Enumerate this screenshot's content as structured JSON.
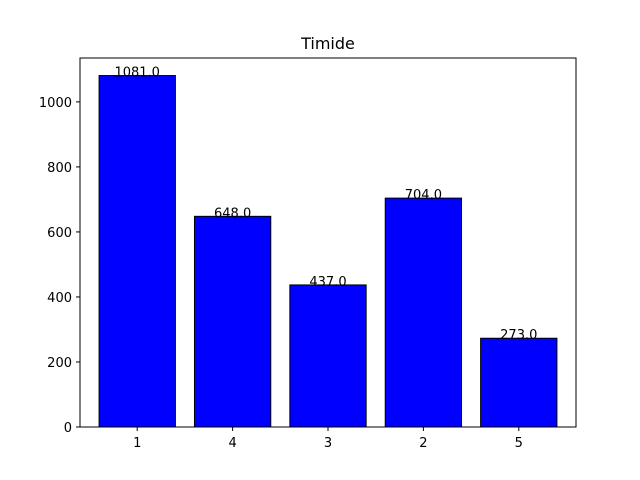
{
  "chart_data": {
    "type": "bar",
    "title": "Timide",
    "xlabel": "",
    "ylabel": "",
    "categories": [
      "1",
      "4",
      "3",
      "2",
      "5"
    ],
    "values": [
      1081.0,
      648.0,
      437.0,
      704.0,
      273.0
    ],
    "data_labels": [
      "1081.0",
      "648.0",
      "437.0",
      "704.0",
      "273.0"
    ],
    "ylim": [
      0,
      1135
    ],
    "yticks": [
      0,
      200,
      400,
      600,
      800,
      1000
    ],
    "ytick_labels": [
      "0",
      "200",
      "400",
      "600",
      "800",
      "1000"
    ],
    "bar_color": "#0000ff",
    "bar_edge_color": "#000000",
    "grid": false,
    "legend": "none"
  }
}
